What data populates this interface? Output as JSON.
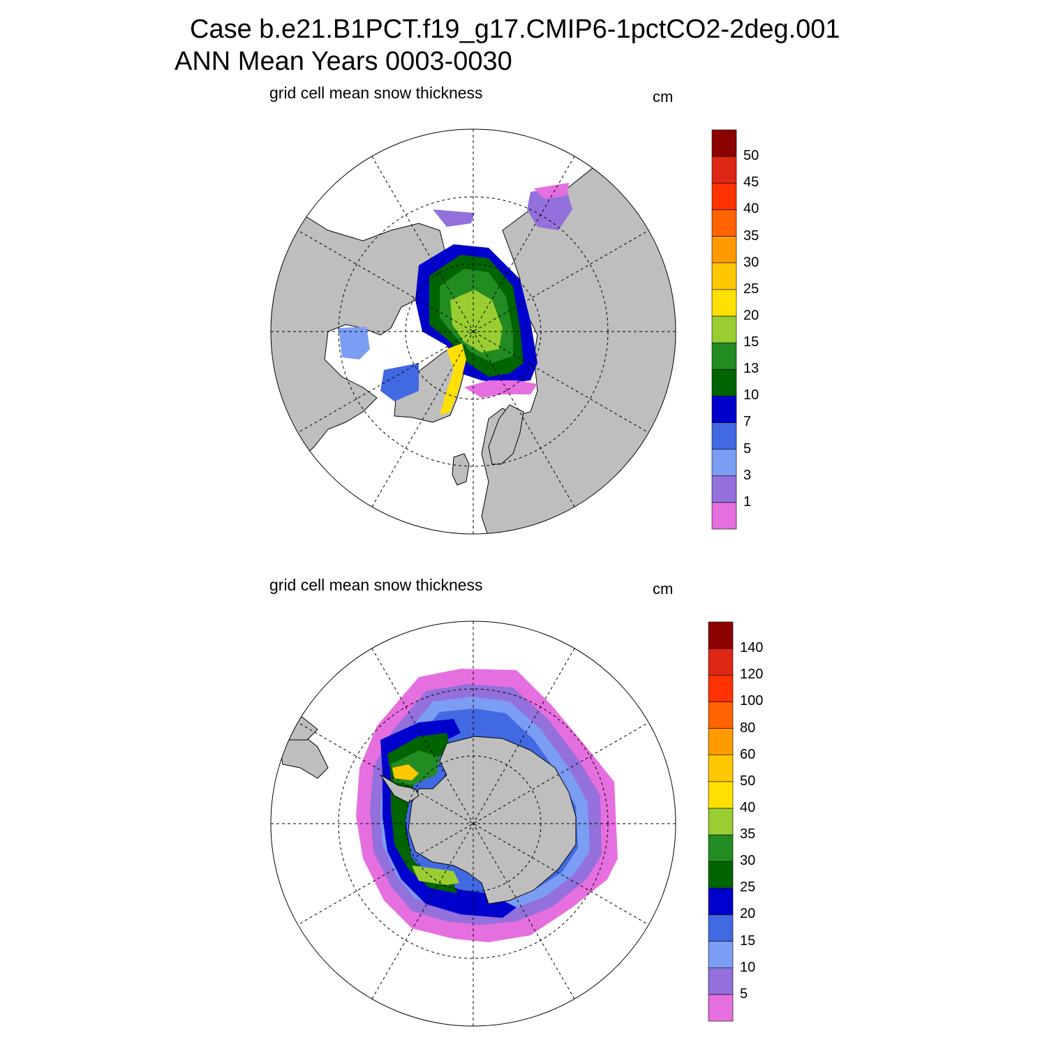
{
  "header": {
    "line1": "Case b.e21.B1PCT.f19_g17.CMIP6-1pctCO2-2deg.001",
    "line2": "ANN Mean    Years 0003-0030"
  },
  "colors": {
    "land": "#bebebe",
    "ocean": "#ffffff",
    "scale": [
      "#e66fdf",
      "#9370db",
      "#7b9df3",
      "#4169e1",
      "#0000cd",
      "#006400",
      "#228b22",
      "#9acd32",
      "#ffe000",
      "#ffc800",
      "#ff9b00",
      "#ff6400",
      "#ff3200",
      "#dc2814",
      "#8b0000"
    ]
  },
  "panels": [
    {
      "id": "arctic",
      "subtitle": "grid cell mean snow thickness",
      "unit": "cm",
      "colorbar_labels": [
        "50",
        "45",
        "40",
        "35",
        "30",
        "25",
        "20",
        "15",
        "13",
        "10",
        "7",
        "5",
        "3",
        "1"
      ]
    },
    {
      "id": "antarctic",
      "subtitle": "grid cell mean snow thickness",
      "unit": "cm",
      "colorbar_labels": [
        "140",
        "120",
        "100",
        "80",
        "60",
        "50",
        "40",
        "35",
        "30",
        "25",
        "20",
        "15",
        "10",
        "5"
      ]
    }
  ]
}
